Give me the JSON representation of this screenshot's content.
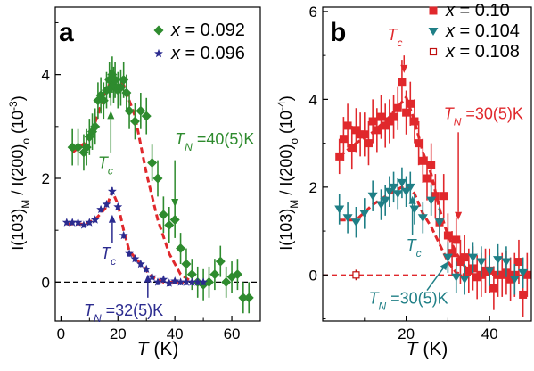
{
  "chart_data": [
    {
      "panel": "a",
      "type": "scatter",
      "xlabel_italic": "T",
      "xlabel_unit": " (K)",
      "ylabel_parts": [
        "I(103)",
        "M",
        " / I(200)",
        "o",
        " (10",
        "-3",
        ")"
      ],
      "xlim": [
        -2,
        70
      ],
      "ylim": [
        -0.75,
        5.3
      ],
      "xticks": [
        0,
        20,
        40,
        60
      ],
      "yticks": [
        0,
        2,
        4
      ],
      "zero_line": {
        "y": 0,
        "color": "#000000"
      },
      "series": [
        {
          "legend_prefix": "x",
          "legend_value": " = 0.092",
          "color": "#2e8b2e",
          "marker": "diamond",
          "x": [
            4,
            6,
            8,
            9,
            10,
            11,
            12,
            13,
            14,
            15,
            16,
            17,
            17.5,
            18,
            18.5,
            19,
            20,
            21,
            22,
            23,
            24,
            26,
            28,
            30,
            32,
            34,
            36,
            38,
            40,
            42,
            44,
            46,
            48,
            50,
            52,
            54,
            56,
            58,
            60,
            62,
            64,
            66
          ],
          "y": [
            2.6,
            2.6,
            2.5,
            2.6,
            2.8,
            2.9,
            3.0,
            3.5,
            3.6,
            3.5,
            3.7,
            3.9,
            3.75,
            4.0,
            3.8,
            3.9,
            3.7,
            3.75,
            3.9,
            3.65,
            3.3,
            3.1,
            3.3,
            3.2,
            2.3,
            2.0,
            1.3,
            1.1,
            1.2,
            0.65,
            0.35,
            0.15,
            0.0,
            -0.05,
            0.0,
            0.15,
            0.4,
            0.0,
            0.1,
            0.15,
            -0.3,
            -0.3
          ],
          "err": [
            0.35,
            0.35,
            0.35,
            0.35,
            0.35,
            0.35,
            0.35,
            0.35,
            0.35,
            0.35,
            0.35,
            0.35,
            0.35,
            0.35,
            0.35,
            0.35,
            0.35,
            0.35,
            0.35,
            0.35,
            0.35,
            0.35,
            0.35,
            0.35,
            0.35,
            0.35,
            0.35,
            0.35,
            0.35,
            0.3,
            0.3,
            0.3,
            0.3,
            0.3,
            0.3,
            0.3,
            0.3,
            0.3,
            0.3,
            0.3,
            0.3,
            0.3
          ],
          "guide": {
            "x": [
              4,
              10,
              14,
              18,
              22,
              26,
              30,
              34,
              38,
              42,
              46
            ],
            "y": [
              2.5,
              2.75,
              3.4,
              3.95,
              3.8,
              3.2,
              2.1,
              1.2,
              0.55,
              0.15,
              0.0
            ]
          }
        },
        {
          "legend_prefix": "x",
          "legend_value": " = 0.096",
          "color": "#2b2b8f",
          "marker": "star",
          "x": [
            2,
            4,
            6,
            8,
            10,
            12,
            14,
            16,
            18,
            20,
            22,
            24,
            26,
            28,
            30,
            32,
            34,
            36,
            38,
            40,
            42,
            44,
            46,
            48,
            50
          ],
          "y": [
            1.15,
            1.15,
            1.15,
            1.1,
            1.15,
            1.2,
            1.4,
            1.5,
            1.75,
            1.45,
            0.9,
            0.55,
            0.45,
            0.35,
            0.25,
            0.1,
            0.0,
            0.05,
            -0.02,
            0.02,
            0.0,
            0.0,
            0.0,
            0.0,
            0.0
          ],
          "err": [
            0.05,
            0.05,
            0.05,
            0.05,
            0.05,
            0.05,
            0.06,
            0.06,
            0.08,
            0.06,
            0.06,
            0.06,
            0.06,
            0.06,
            0.06,
            0.06,
            0.06,
            0.06,
            0.06,
            0.06,
            0.06,
            0.06,
            0.06,
            0.06,
            0.06
          ],
          "guide": {
            "x": [
              2,
              8,
              12,
              16,
              18,
              20,
              22,
              24,
              28,
              32,
              36,
              40,
              44
            ],
            "y": [
              1.12,
              1.12,
              1.2,
              1.45,
              1.75,
              1.5,
              1.0,
              0.6,
              0.35,
              0.1,
              0.0,
              0.0,
              0.0
            ]
          }
        }
      ],
      "annotations": [
        {
          "kind": "label",
          "parts": [
            "T",
            "c"
          ],
          "color": "#2e8b2e",
          "x": 13,
          "y": 2.2
        },
        {
          "kind": "arrow",
          "color": "#2e8b2e",
          "from": [
            17.5,
            2.5
          ],
          "to": [
            17.5,
            3.3
          ]
        },
        {
          "kind": "label",
          "parts": [
            "T",
            "N",
            " =40(5)K"
          ],
          "color": "#2e8b2e",
          "x": 40,
          "y": 2.65
        },
        {
          "kind": "arrow",
          "color": "#2e8b2e",
          "from": [
            40,
            2.35
          ],
          "to": [
            40,
            1.45
          ]
        },
        {
          "kind": "label",
          "parts": [
            "T",
            "c"
          ],
          "color": "#2b2b8f",
          "x": 14,
          "y": 0.45
        },
        {
          "kind": "arrow",
          "color": "#2b2b8f",
          "from": [
            18,
            0.75
          ],
          "to": [
            18,
            1.3
          ]
        },
        {
          "kind": "label",
          "parts": [
            "T",
            "N",
            " =32(5)K"
          ],
          "color": "#2b2b8f",
          "x": 8,
          "y": -0.65
        },
        {
          "kind": "arrow",
          "color": "#2b2b8f",
          "from": [
            30.5,
            -0.3
          ],
          "to": [
            30.5,
            0.15
          ]
        }
      ],
      "panel_label": "a"
    },
    {
      "panel": "b",
      "type": "scatter",
      "xlabel_italic": "T",
      "xlabel_unit": " (K)",
      "ylabel_parts": [
        "I(103)",
        "M",
        " / I(200)",
        "o",
        " (10",
        "-4",
        ")"
      ],
      "xlim": [
        0,
        50
      ],
      "ylim": [
        -1.05,
        6.1
      ],
      "xticks": [
        20,
        40
      ],
      "yticks": [
        0,
        2,
        4,
        6
      ],
      "zero_line": {
        "y": 0,
        "color": "#e0282c"
      },
      "series": [
        {
          "legend_prefix": "x",
          "legend_value": " = 0.10",
          "color": "#e0282c",
          "marker": "square",
          "x": [
            4,
            5,
            6,
            7,
            8,
            9,
            10,
            11,
            12,
            13,
            14,
            15,
            16,
            17,
            18,
            19,
            20,
            21,
            22,
            23,
            24,
            25,
            26,
            27,
            28,
            29,
            30,
            31,
            32,
            33,
            34,
            35,
            36,
            37,
            38,
            39,
            40,
            41,
            42,
            43,
            44,
            45,
            46,
            47,
            48,
            49
          ],
          "y": [
            2.7,
            3.1,
            3.4,
            2.9,
            3.3,
            3.2,
            3.2,
            3.0,
            3.5,
            3.3,
            3.6,
            3.4,
            3.5,
            3.6,
            3.8,
            4.4,
            3.7,
            3.9,
            3.5,
            3.0,
            2.6,
            2.2,
            2.5,
            1.8,
            1.2,
            1.8,
            0.9,
            0.5,
            0.8,
            0.3,
            0.4,
            0.1,
            0.15,
            -0.05,
            0.0,
            0.1,
            0.1,
            -0.3,
            0.0,
            0.0,
            0.05,
            -0.1,
            0.0,
            0.3,
            -0.45,
            0.0
          ],
          "err": [
            0.4,
            0.5,
            0.5,
            0.5,
            0.5,
            0.5,
            0.5,
            0.5,
            0.5,
            0.5,
            0.5,
            0.5,
            0.5,
            0.5,
            0.5,
            0.5,
            0.5,
            0.5,
            0.5,
            0.5,
            0.5,
            0.5,
            0.5,
            0.5,
            0.5,
            0.5,
            0.5,
            0.5,
            0.5,
            0.5,
            0.5,
            0.5,
            0.5,
            0.5,
            0.5,
            0.5,
            0.5,
            0.5,
            0.5,
            0.5,
            0.5,
            0.5,
            0.5,
            0.5,
            0.5,
            0.5
          ],
          "guide": {
            "x": [
              4,
              8,
              12,
              16,
              20,
              22,
              24,
              26,
              28,
              30,
              32,
              34,
              36
            ],
            "y": [
              2.7,
              3.0,
              3.25,
              3.6,
              4.05,
              3.5,
              2.8,
              2.3,
              1.5,
              0.9,
              0.5,
              0.2,
              0.05
            ]
          }
        },
        {
          "legend_prefix": "x",
          "legend_value": " = 0.104",
          "color": "#1f7f86",
          "marker": "triangle-down",
          "x": [
            4,
            6,
            8,
            10,
            12,
            14,
            15,
            16,
            17,
            18,
            19,
            20,
            21,
            22,
            24,
            26,
            28,
            30,
            32,
            34,
            36,
            38,
            40,
            42,
            44,
            46,
            48
          ],
          "y": [
            1.5,
            1.3,
            1.2,
            1.4,
            1.8,
            1.6,
            1.7,
            1.9,
            2.0,
            1.85,
            2.1,
            1.9,
            2.0,
            1.5,
            1.3,
            1.7,
            1.2,
            0.4,
            -0.05,
            -0.1,
            0.4,
            0.3,
            0.1,
            0.35,
            0.3,
            -0.1,
            0.05
          ],
          "err": [
            0.35,
            0.35,
            0.35,
            0.35,
            0.35,
            0.35,
            0.35,
            0.35,
            0.35,
            0.35,
            0.35,
            0.35,
            0.35,
            0.35,
            0.35,
            0.35,
            0.35,
            0.35,
            0.35,
            0.35,
            0.35,
            0.35,
            0.35,
            0.35,
            0.35,
            0.35,
            0.35
          ],
          "guide": {
            "x": [
              4,
              8,
              12,
              16,
              20,
              22,
              24,
              26,
              28,
              30,
              32,
              34
            ],
            "y": [
              1.25,
              1.25,
              1.6,
              1.85,
              2.05,
              1.85,
              1.4,
              1.1,
              0.7,
              0.3,
              0.05,
              0.0
            ]
          }
        },
        {
          "legend_prefix": "x",
          "legend_value": " = 0.108",
          "color": "#c01010",
          "marker": "square-open",
          "x": [
            8
          ],
          "y": [
            0.0
          ],
          "err": [
            0.12
          ],
          "guide": null
        }
      ],
      "annotations": [
        {
          "kind": "label",
          "parts": [
            "T",
            "c"
          ],
          "color": "#e0282c",
          "x": 15.5,
          "y": 5.35
        },
        {
          "kind": "arrow",
          "color": "#e0282c",
          "from": [
            19.5,
            5.0
          ],
          "to": [
            19.5,
            4.6
          ]
        },
        {
          "kind": "label",
          "parts": [
            "T",
            "N",
            " =30(5)K"
          ],
          "color": "#e0282c",
          "x": 29,
          "y": 3.55
        },
        {
          "kind": "arrow",
          "color": "#e0282c",
          "from": [
            32.5,
            3.25
          ],
          "to": [
            32.5,
            1.25
          ]
        },
        {
          "kind": "label",
          "parts": [
            "T",
            "c"
          ],
          "color": "#1f7f86",
          "x": 20,
          "y": 0.55
        },
        {
          "kind": "arrow",
          "color": "#1f7f86",
          "from": [
            21.5,
            0.9
          ],
          "to": [
            21.5,
            1.8
          ]
        },
        {
          "kind": "label",
          "parts": [
            "T",
            "N",
            " =30(5)K"
          ],
          "color": "#1f7f86",
          "x": 11,
          "y": -0.65
        },
        {
          "kind": "arrow",
          "color": "#1f7f86",
          "from": [
            25,
            -0.35
          ],
          "to": [
            30,
            0.3
          ]
        }
      ],
      "panel_label": "b"
    }
  ]
}
